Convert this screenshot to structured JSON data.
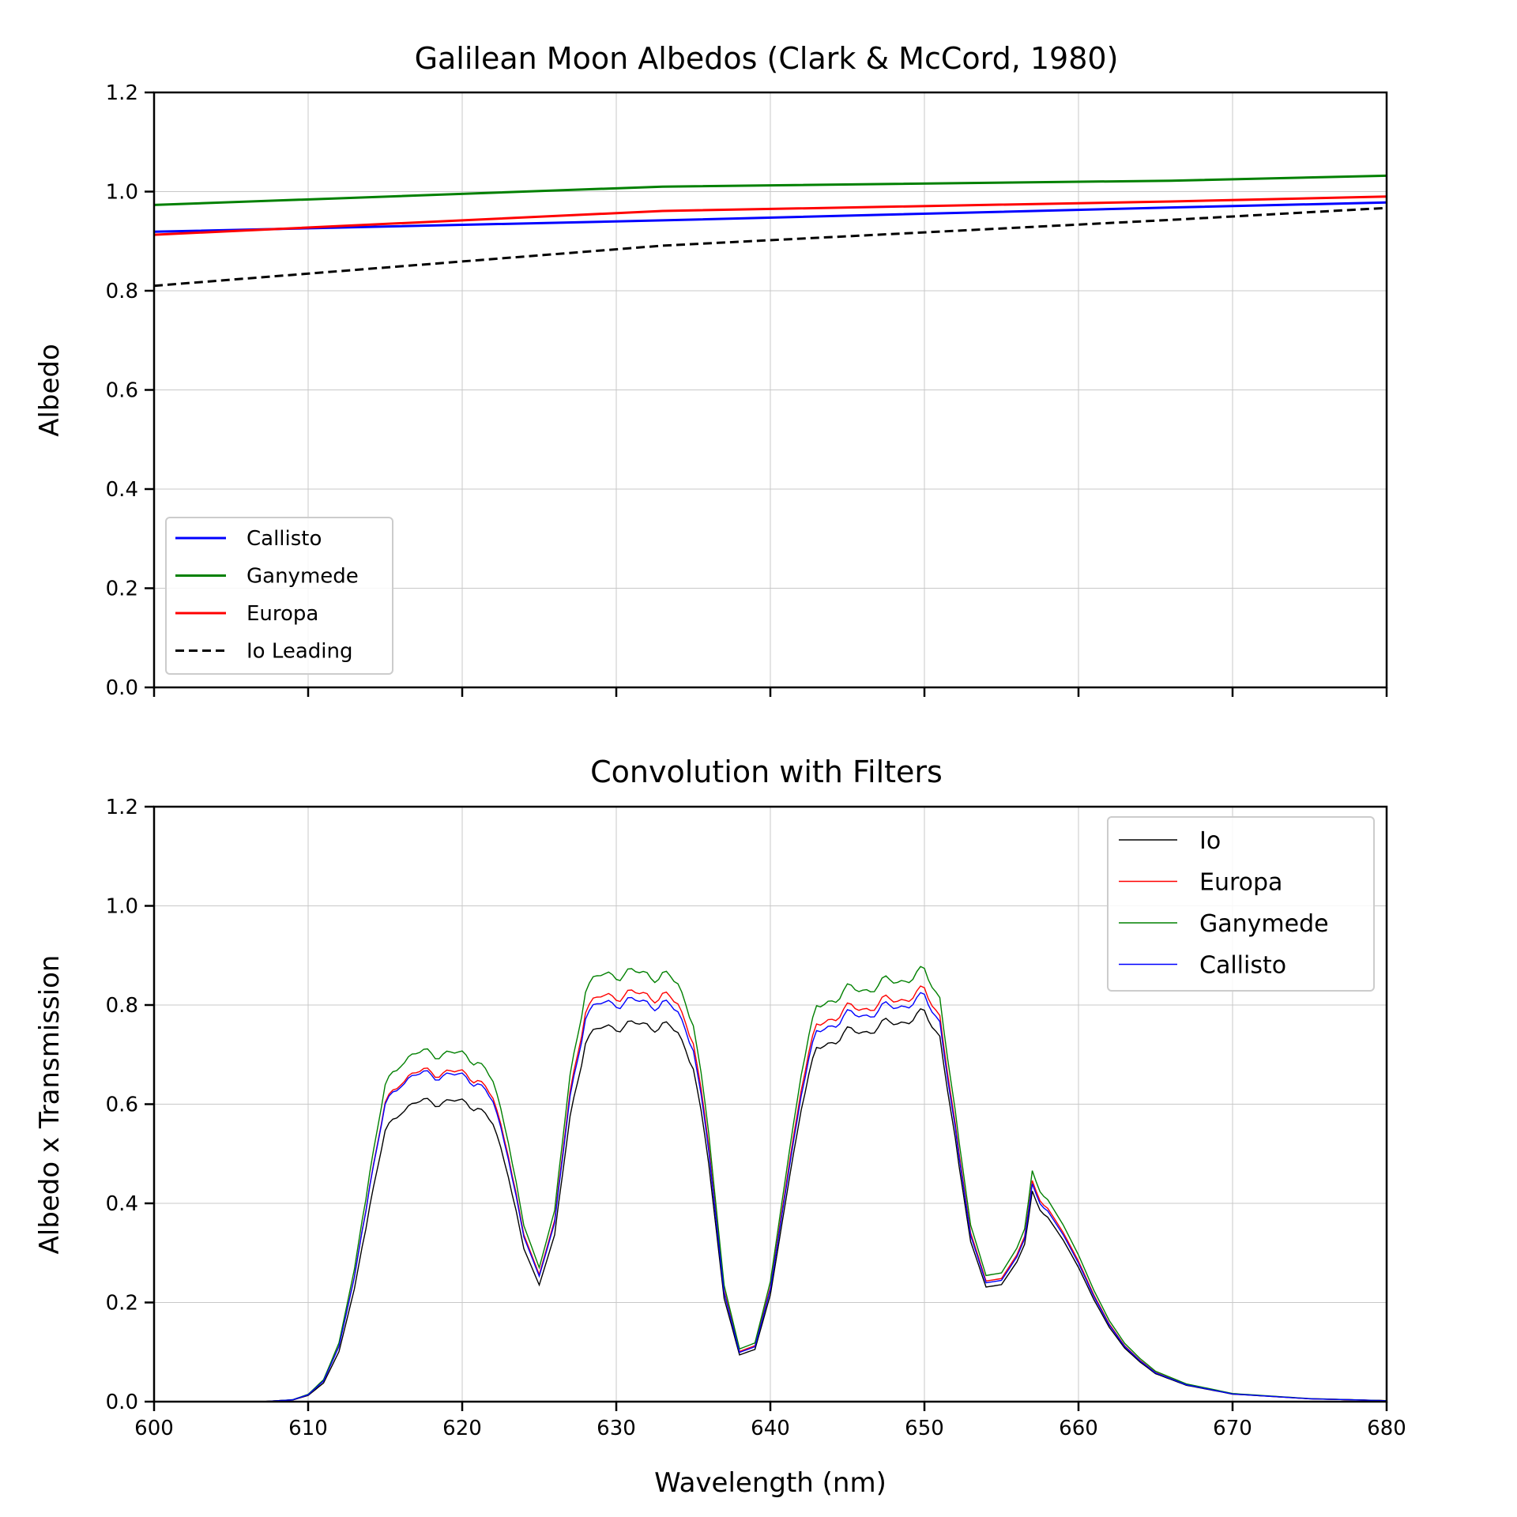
{
  "chart_data": [
    {
      "type": "line",
      "title": "Galilean Moon Albedos (Clark & McCord, 1980)",
      "xlabel": "",
      "ylabel": "Albedo",
      "xlim": [
        600,
        680
      ],
      "ylim": [
        0.0,
        1.2
      ],
      "xticks": [
        600,
        610,
        620,
        630,
        640,
        650,
        660,
        670,
        680
      ],
      "yticks": [
        "0.0",
        "0.2",
        "0.4",
        "0.6",
        "0.8",
        "1.0",
        "1.2"
      ],
      "grid": true,
      "legend_position": "lower-left",
      "series": [
        {
          "name": "Callisto",
          "color": "#0000ff",
          "style": "solid",
          "x": [
            600,
            633,
            666,
            680
          ],
          "y": [
            0.919,
            0.942,
            0.968,
            0.978
          ]
        },
        {
          "name": "Ganymede",
          "color": "#008000",
          "style": "solid",
          "x": [
            600,
            633,
            666,
            680
          ],
          "y": [
            0.973,
            1.01,
            1.022,
            1.032
          ]
        },
        {
          "name": "Europa",
          "color": "#ff0000",
          "style": "solid",
          "x": [
            600,
            633,
            666,
            680
          ],
          "y": [
            0.913,
            0.961,
            0.98,
            0.99
          ]
        },
        {
          "name": "Io Leading",
          "color": "#000000",
          "style": "dashed",
          "x": [
            600,
            633,
            666,
            680
          ],
          "y": [
            0.81,
            0.891,
            0.943,
            0.967
          ]
        }
      ]
    },
    {
      "type": "line",
      "title": "Convolution with Filters",
      "xlabel": "Wavelength (nm)",
      "ylabel": "Albedo x Transmission",
      "xlim": [
        600,
        680
      ],
      "ylim": [
        0.0,
        1.2
      ],
      "xticks": [
        600,
        610,
        620,
        630,
        640,
        650,
        660,
        670,
        680
      ],
      "yticks": [
        "0.0",
        "0.2",
        "0.4",
        "0.6",
        "0.8",
        "1.0",
        "1.2"
      ],
      "grid": true,
      "legend_position": "upper-right",
      "filters": [
        {
          "x": [
            600,
            607,
            609,
            610,
            611,
            612,
            613,
            614,
            615,
            616,
            617,
            618,
            619,
            620,
            621,
            622,
            623,
            624,
            625,
            626,
            627,
            628,
            630,
            635
          ],
          "t": [
            0,
            0,
            0.004,
            0.015,
            0.045,
            0.12,
            0.27,
            0.47,
            0.64,
            0.695,
            0.705,
            0.71,
            0.705,
            0.7,
            0.69,
            0.64,
            0.52,
            0.31,
            0.13,
            0.045,
            0.012,
            0.003,
            0,
            0
          ]
        },
        {
          "x": [
            600,
            618,
            622,
            623,
            624,
            625,
            626,
            627,
            628,
            629,
            630,
            631,
            632,
            633,
            634,
            635,
            636,
            637,
            638,
            639,
            640,
            645
          ],
          "t": [
            0,
            0,
            0.004,
            0.012,
            0.045,
            0.14,
            0.34,
            0.64,
            0.83,
            0.85,
            0.86,
            0.855,
            0.855,
            0.85,
            0.83,
            0.76,
            0.53,
            0.22,
            0.07,
            0.02,
            0.005,
            0
          ]
        },
        {
          "x": [
            630,
            636,
            637,
            638,
            639,
            640,
            641,
            642,
            643,
            644,
            645,
            646,
            647,
            648,
            649,
            650,
            651,
            652,
            653,
            654,
            655,
            656,
            657,
            660
          ],
          "t": [
            0,
            0.003,
            0.012,
            0.035,
            0.095,
            0.23,
            0.44,
            0.65,
            0.77,
            0.79,
            0.8,
            0.8,
            0.8,
            0.8,
            0.795,
            0.79,
            0.72,
            0.46,
            0.2,
            0.06,
            0.015,
            0.004,
            0,
            0
          ]
        },
        {
          "x": [
            600,
            638,
            640,
            642,
            644,
            646,
            648,
            650,
            652,
            654,
            655,
            656,
            656.5,
            657,
            657.5,
            658,
            659,
            660,
            661,
            662,
            663,
            664,
            665,
            667,
            670,
            675,
            680
          ],
          "t": [
            0,
            0,
            0.004,
            0.007,
            0.012,
            0.02,
            0.035,
            0.06,
            0.11,
            0.19,
            0.24,
            0.3,
            0.34,
            0.45,
            0.42,
            0.4,
            0.35,
            0.29,
            0.22,
            0.16,
            0.115,
            0.085,
            0.06,
            0.035,
            0.016,
            0.006,
            0.002
          ]
        }
      ],
      "series": [
        {
          "name": "Io",
          "color": "#000000",
          "style": "solid"
        },
        {
          "name": "Europa",
          "color": "#ff0000",
          "style": "solid"
        },
        {
          "name": "Ganymede",
          "color": "#008000",
          "style": "solid"
        },
        {
          "name": "Callisto",
          "color": "#0000ff",
          "style": "solid"
        }
      ]
    }
  ]
}
